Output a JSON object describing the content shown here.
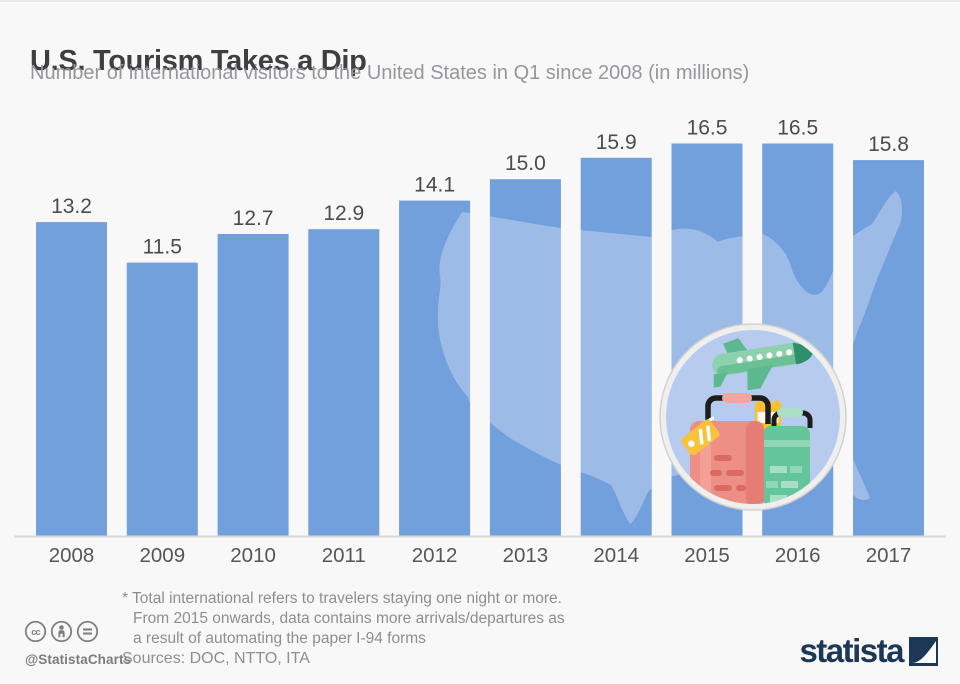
{
  "header": {
    "title": "U.S. Tourism Takes a Dip",
    "subtitle": "Number of international visitors to the United States in Q1 since 2008 (in millions)"
  },
  "chart_data": {
    "type": "bar",
    "categories": [
      "2008",
      "2009",
      "2010",
      "2011",
      "2012",
      "2013",
      "2014",
      "2015",
      "2016",
      "2017"
    ],
    "values": [
      13.2,
      11.5,
      12.7,
      12.9,
      14.1,
      15.0,
      15.9,
      16.5,
      16.5,
      15.8
    ],
    "title": "U.S. Tourism Takes a Dip",
    "xlabel": "",
    "ylabel": "",
    "ylim": [
      0,
      17.5
    ],
    "bar_color": "#72a0dd",
    "value_labels_shown": true,
    "grid": false,
    "legend": false,
    "decorations": [
      "us-map-silhouette",
      "travel-illustration-circle"
    ]
  },
  "footer": {
    "license": {
      "icons": [
        "cc",
        "attribution",
        "no-derivatives"
      ],
      "handle": "@StatistaCharts"
    },
    "footnote_lines": [
      "* Total international refers to travelers staying one night or more.",
      "From 2015 onwards, data contains more arrivals/departures as",
      "a result of automating the paper I-94 forms"
    ],
    "sources": "Sources: DOC, NTTO, ITA",
    "brand": "statista"
  },
  "colors": {
    "background": "#f8f8f9",
    "bar": "#72a0dd",
    "map_overlay": "rgba(255,255,255,0.3)",
    "baseline": "#d9d9d9",
    "title": "#3f3f41",
    "subtitle": "#97979b",
    "value_label": "#4c4c4f",
    "axis_label": "#56565a",
    "footnote": "#8e8e91",
    "brand_navy": "#1d3756",
    "circle_fill": "#b7cbef"
  }
}
